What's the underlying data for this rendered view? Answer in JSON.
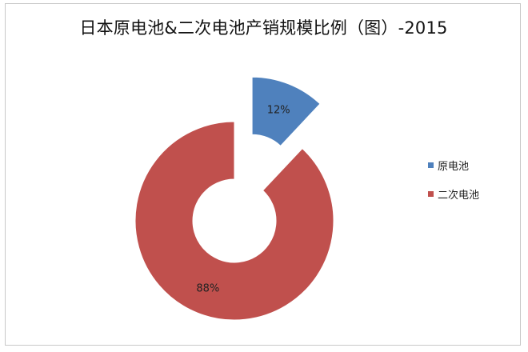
{
  "chart_data": {
    "type": "pie",
    "variant": "exploded-doughnut",
    "title": "日本原电池&二次电池产销规模比例（图）-2015",
    "categories": [
      "原电池",
      "二次电池"
    ],
    "values": [
      12,
      88
    ],
    "value_labels": [
      "12%",
      "88%"
    ],
    "colors": [
      "#4F81BD",
      "#C0504D"
    ],
    "legend_position": "right"
  }
}
